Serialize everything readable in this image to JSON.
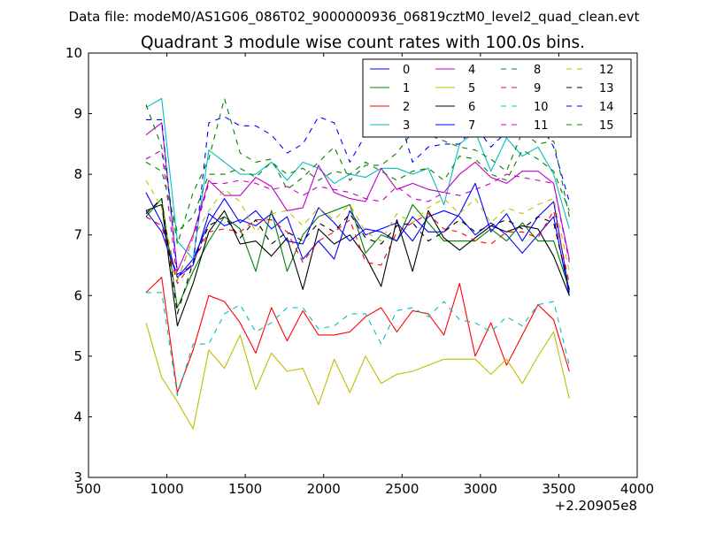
{
  "suptitle": "Data file: modeM0/AS1G06_086T02_9000000936_06819cztM0_level2_quad_clean.evt",
  "chart_data": {
    "type": "line",
    "title": "Quadrant 3 module wise count rates with 100.0s bins.",
    "xlabel": "",
    "ylabel": "",
    "x_offset_label": "+2.20905e8",
    "xlim": [
      500,
      4000
    ],
    "ylim": [
      3,
      10
    ],
    "xticks": [
      "500",
      "1000",
      "1500",
      "2000",
      "2500",
      "3000",
      "3500",
      "4000"
    ],
    "yticks": [
      "3",
      "4",
      "5",
      "6",
      "7",
      "8",
      "9",
      "10"
    ],
    "legend_position": "top-right",
    "grid": false,
    "x": [
      867,
      967,
      1067,
      1167,
      1267,
      1367,
      1467,
      1567,
      1667,
      1767,
      1867,
      1967,
      2067,
      2167,
      2267,
      2367,
      2467,
      2567,
      2667,
      2767,
      2867,
      2967,
      3067,
      3167,
      3267,
      3367,
      3467,
      3567
    ],
    "series": [
      {
        "name": "0",
        "color": "#0000ff",
        "dash": "solid",
        "values": [
          7.7,
          7.2,
          6.3,
          6.6,
          7.2,
          7.6,
          7.2,
          7.4,
          7.1,
          7.3,
          6.6,
          6.9,
          6.6,
          7.4,
          7.0,
          7.1,
          7.2,
          6.9,
          7.3,
          7.4,
          7.3,
          7.0,
          7.2,
          7.0,
          6.7,
          7.0,
          7.3,
          6.0
        ]
      },
      {
        "name": "1",
        "color": "#008000",
        "dash": "solid",
        "values": [
          7.3,
          7.6,
          5.8,
          6.4,
          6.9,
          7.3,
          7.1,
          6.4,
          7.4,
          6.4,
          7.0,
          7.3,
          7.4,
          7.5,
          6.7,
          7.0,
          6.9,
          7.5,
          7.2,
          6.9,
          6.9,
          6.9,
          7.1,
          6.9,
          7.2,
          6.9,
          6.9,
          6.1
        ]
      },
      {
        "name": "2",
        "color": "#ff0000",
        "dash": "solid",
        "values": [
          6.05,
          6.3,
          4.4,
          5.1,
          6.0,
          5.9,
          5.55,
          5.05,
          5.8,
          5.25,
          5.75,
          5.35,
          5.35,
          5.4,
          5.65,
          5.8,
          5.4,
          5.75,
          5.7,
          5.35,
          6.2,
          5.0,
          5.55,
          4.85,
          5.35,
          5.85,
          5.6,
          4.75
        ]
      },
      {
        "name": "3",
        "color": "#00bfbf",
        "dash": "solid",
        "values": [
          9.1,
          9.25,
          6.9,
          6.6,
          8.4,
          8.2,
          8.0,
          8.0,
          8.2,
          7.9,
          8.2,
          8.1,
          7.85,
          8.0,
          7.95,
          8.1,
          8.1,
          8.0,
          8.1,
          7.5,
          8.5,
          8.7,
          8.05,
          8.6,
          8.3,
          8.45,
          8.0,
          7.1
        ]
      },
      {
        "name": "4",
        "color": "#bf00bf",
        "dash": "solid",
        "values": [
          8.65,
          8.85,
          6.4,
          7.0,
          7.9,
          7.65,
          7.65,
          7.95,
          7.8,
          7.4,
          7.45,
          8.15,
          7.7,
          7.6,
          7.55,
          8.1,
          7.75,
          7.85,
          7.75,
          7.7,
          8.0,
          8.2,
          7.95,
          7.85,
          8.05,
          8.05,
          7.85,
          6.6
        ]
      },
      {
        "name": "5",
        "color": "#bfbf00",
        "dash": "solid",
        "values": [
          5.55,
          4.65,
          4.25,
          3.8,
          5.1,
          4.8,
          5.35,
          4.45,
          5.05,
          4.75,
          4.8,
          4.2,
          4.95,
          4.4,
          5.0,
          4.55,
          4.7,
          4.75,
          4.85,
          4.95,
          4.95,
          4.95,
          4.7,
          4.95,
          4.55,
          5.0,
          5.4,
          4.3
        ]
      },
      {
        "name": "6",
        "color": "#000000",
        "dash": "solid",
        "values": [
          7.4,
          7.5,
          5.5,
          6.2,
          7.05,
          7.4,
          6.85,
          6.9,
          6.65,
          6.95,
          6.1,
          7.1,
          6.85,
          7.0,
          6.65,
          6.15,
          7.25,
          6.4,
          7.4,
          6.95,
          6.75,
          6.95,
          7.15,
          7.05,
          7.15,
          7.1,
          6.65,
          6.0
        ]
      },
      {
        "name": "7",
        "color": "#0000ff",
        "dash": "solid",
        "values": [
          7.4,
          7.05,
          6.3,
          6.5,
          7.35,
          7.15,
          7.25,
          7.15,
          7.35,
          6.9,
          6.85,
          7.45,
          7.2,
          6.9,
          7.1,
          7.05,
          6.9,
          7.3,
          7.05,
          7.05,
          7.35,
          7.85,
          7.05,
          7.35,
          6.9,
          7.3,
          7.55,
          6.05
        ]
      },
      {
        "name": "8",
        "color": "#008000",
        "dash": "dashed",
        "values": [
          9.15,
          8.45,
          6.85,
          7.7,
          8.25,
          9.25,
          8.35,
          8.2,
          8.25,
          7.75,
          7.95,
          8.2,
          8.45,
          7.9,
          8.15,
          8.15,
          8.35,
          8.7,
          8.65,
          8.55,
          8.45,
          8.4,
          8.25,
          8.05,
          8.7,
          8.5,
          8.55,
          7.3
        ]
      },
      {
        "name": "9",
        "color": "#ff0000",
        "dash": "dashed",
        "values": [
          7.3,
          7.15,
          6.2,
          6.55,
          7.05,
          7.1,
          7.05,
          7.25,
          7.25,
          7.05,
          6.55,
          6.9,
          7.05,
          7.25,
          6.55,
          6.5,
          7.05,
          7.2,
          7.35,
          7.1,
          7.05,
          6.9,
          6.85,
          7.05,
          7.05,
          6.95,
          7.4,
          6.2
        ]
      },
      {
        "name": "10",
        "color": "#00bfbf",
        "dash": "dashed",
        "values": [
          6.05,
          6.05,
          4.35,
          5.2,
          5.2,
          5.7,
          5.85,
          5.4,
          5.55,
          5.8,
          5.8,
          5.45,
          5.5,
          5.7,
          5.7,
          5.2,
          5.75,
          5.8,
          5.65,
          5.9,
          5.6,
          5.55,
          5.4,
          5.65,
          5.5,
          5.85,
          5.9,
          4.85
        ]
      },
      {
        "name": "11",
        "color": "#bf00bf",
        "dash": "dashed",
        "values": [
          8.25,
          8.4,
          6.25,
          6.95,
          7.85,
          7.85,
          7.9,
          7.85,
          7.75,
          7.8,
          7.65,
          7.8,
          7.75,
          7.7,
          7.6,
          7.55,
          7.8,
          7.6,
          7.55,
          7.7,
          7.65,
          7.75,
          7.85,
          8.0,
          7.95,
          7.9,
          7.85,
          6.55
        ]
      },
      {
        "name": "12",
        "color": "#bfbf00",
        "dash": "dashed",
        "values": [
          7.9,
          7.45,
          6.25,
          6.95,
          7.4,
          7.75,
          7.55,
          7.05,
          7.35,
          7.4,
          7.15,
          7.45,
          7.25,
          7.5,
          7.05,
          6.9,
          7.35,
          7.2,
          7.45,
          7.6,
          7.35,
          7.6,
          7.2,
          7.45,
          7.35,
          7.5,
          7.6,
          6.4
        ]
      },
      {
        "name": "13",
        "color": "#000000",
        "dash": "dashed",
        "values": [
          7.35,
          7.6,
          5.7,
          6.55,
          7.15,
          7.3,
          6.95,
          7.25,
          6.85,
          7.05,
          6.9,
          7.2,
          7.05,
          7.35,
          6.95,
          6.85,
          7.15,
          7.2,
          6.9,
          7.05,
          7.25,
          7.05,
          7.15,
          7.25,
          7.1,
          7.3,
          7.2,
          6.1
        ]
      },
      {
        "name": "14",
        "color": "#0000ff",
        "dash": "dashed",
        "values": [
          8.9,
          8.9,
          6.35,
          6.5,
          8.85,
          8.95,
          8.8,
          8.8,
          8.65,
          8.35,
          8.5,
          8.95,
          8.85,
          8.2,
          8.65,
          9.15,
          9.1,
          8.2,
          8.45,
          8.5,
          8.5,
          8.8,
          8.45,
          8.7,
          9.05,
          8.9,
          8.45,
          7.55
        ]
      },
      {
        "name": "15",
        "color": "#008000",
        "dash": "dashed",
        "values": [
          8.2,
          8.05,
          7.05,
          7.3,
          8.0,
          8.0,
          8.1,
          7.95,
          8.2,
          8.0,
          8.1,
          7.9,
          8.05,
          8.0,
          8.2,
          8.05,
          7.9,
          8.05,
          8.1,
          7.9,
          8.3,
          8.25,
          8.0,
          7.9,
          8.4,
          8.25,
          8.05,
          7.4
        ]
      }
    ]
  }
}
